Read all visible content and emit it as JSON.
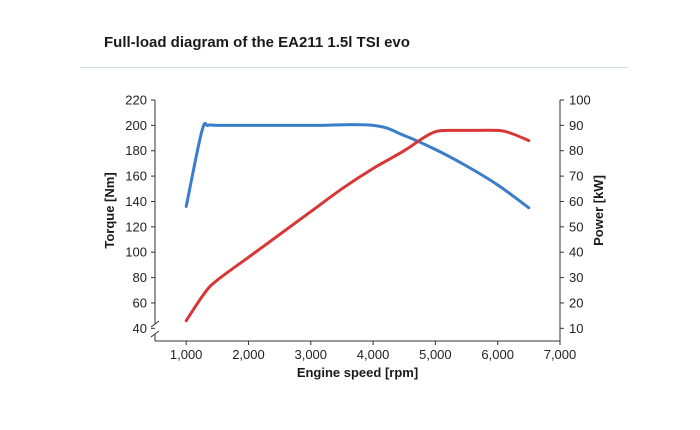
{
  "chart_data": {
    "type": "line",
    "title": "Full-load diagram of the EA211 1.5l TSI evo",
    "xlabel": "Engine speed [rpm]",
    "ylabel_left": "Torque [Nm]",
    "ylabel_right": "Power [kW]",
    "xlim": [
      500,
      7000
    ],
    "ylim_left": [
      30,
      220
    ],
    "ylim_right": [
      5,
      100
    ],
    "x_ticks": [
      1000,
      2000,
      3000,
      4000,
      5000,
      6000,
      7000
    ],
    "x_tick_labels": [
      "1,000",
      "2,000",
      "3,000",
      "4,000",
      "5,000",
      "6,000",
      "7,000"
    ],
    "y_left_ticks": [
      40,
      60,
      80,
      100,
      120,
      140,
      160,
      180,
      200,
      220
    ],
    "y_left_tick_labels": [
      "40",
      "60",
      "80",
      "100",
      "120",
      "140",
      "160",
      "180",
      "200",
      "220"
    ],
    "y_right_ticks": [
      10,
      20,
      30,
      40,
      50,
      60,
      70,
      80,
      90,
      100
    ],
    "y_right_tick_labels": [
      "10",
      "20",
      "30",
      "40",
      "50",
      "60",
      "70",
      "80",
      "90",
      "100"
    ],
    "axis_break": true,
    "grid": false,
    "series": [
      {
        "axis": "left",
        "color": "#3a7dc9",
        "x": [
          1000,
          1250,
          1350,
          1500,
          2000,
          3000,
          4000,
          4500,
          5000,
          5500,
          6000,
          6500
        ],
        "values": [
          136,
          195,
          200,
          200,
          200,
          200,
          200,
          192,
          181,
          168,
          153,
          135
        ]
      },
      {
        "axis": "right",
        "color": "#d93636",
        "x": [
          1000,
          1300,
          1500,
          2000,
          2500,
          3000,
          3500,
          4000,
          4500,
          4800,
          5000,
          5200,
          5500,
          6000,
          6200,
          6500
        ],
        "values": [
          13,
          24,
          29,
          38,
          47,
          56,
          65,
          73,
          80,
          85,
          87.5,
          88,
          88,
          88,
          87,
          84
        ]
      }
    ]
  }
}
